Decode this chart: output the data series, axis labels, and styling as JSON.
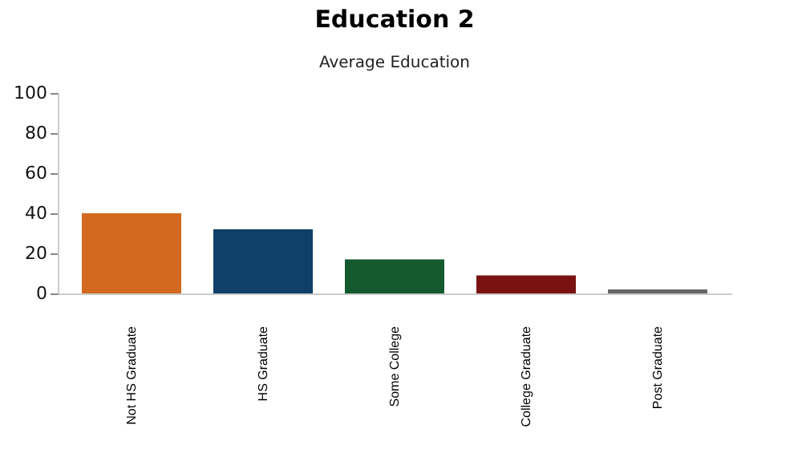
{
  "chart_data": {
    "type": "bar",
    "title": "Education 2",
    "subtitle": "Average Education",
    "categories": [
      "Not HS Graduate",
      "HS Graduate",
      "Some College",
      "College Graduate",
      "Post Graduate"
    ],
    "values": [
      40,
      32,
      17,
      9,
      2
    ],
    "colors": [
      "#d2691e",
      "#0f3f6a",
      "#145a2e",
      "#7a1212",
      "#666666"
    ],
    "ylim": [
      0,
      100
    ],
    "yticks": [
      0,
      20,
      40,
      60,
      80,
      100
    ],
    "grid": false
  }
}
